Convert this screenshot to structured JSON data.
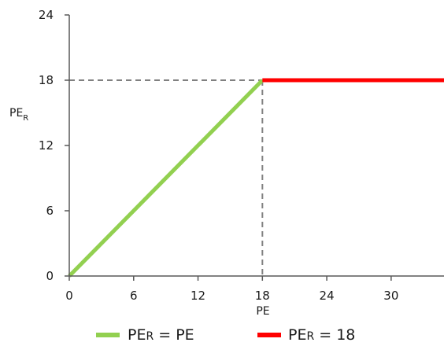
{
  "chart_data": {
    "type": "line",
    "xlabel": "PE",
    "ylabel": "PE",
    "ylabel_subscript": "R",
    "xlim": [
      0,
      35
    ],
    "ylim": [
      0,
      24
    ],
    "xticks": [
      0,
      6,
      12,
      18,
      24,
      30
    ],
    "yticks": [
      0,
      6,
      12,
      18,
      24
    ],
    "xtick_labels": [
      "0",
      "6",
      "12",
      "18",
      "24",
      "30"
    ],
    "ytick_labels": [
      "0",
      "6",
      "12",
      "18",
      "24"
    ],
    "grid": false,
    "legend_position": "bottom",
    "series": [
      {
        "name": "PER = PE",
        "legend_main": "PE",
        "legend_sub": "R",
        "legend_rest": " = PE",
        "color": "#92d050",
        "x": [
          0,
          18
        ],
        "y": [
          0,
          18
        ]
      },
      {
        "name": "PER = 18",
        "legend_main": "PE",
        "legend_sub": "R",
        "legend_rest": " = 18",
        "color": "#ff0000",
        "x": [
          18,
          35
        ],
        "y": [
          18,
          18
        ]
      }
    ],
    "reference_lines": {
      "color": "#808080",
      "style": "dashed",
      "point": [
        18,
        18
      ]
    }
  }
}
